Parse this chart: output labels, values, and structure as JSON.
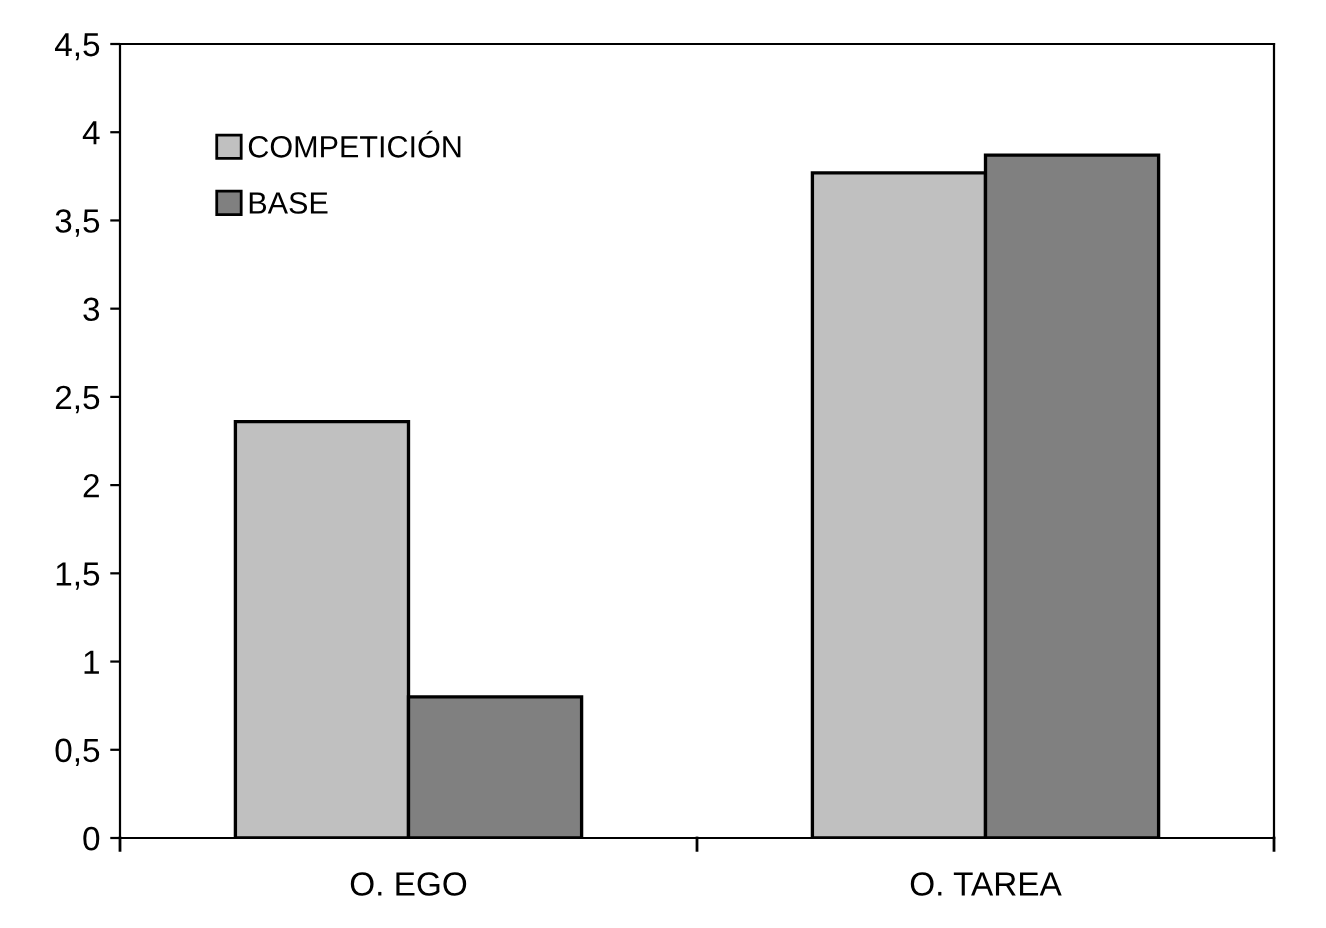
{
  "chart_data": {
    "type": "bar",
    "categories": [
      "O. EGO",
      "O. TAREA"
    ],
    "series": [
      {
        "name": "COMPETICIÓN",
        "color": "#c0c0c0",
        "values": [
          2.36,
          3.77
        ]
      },
      {
        "name": "BASE",
        "color": "#808080",
        "values": [
          0.8,
          3.87
        ]
      }
    ],
    "ylim": [
      0,
      4.5
    ],
    "yticks": [
      {
        "value": 0,
        "label": "0"
      },
      {
        "value": 0.5,
        "label": "0,5"
      },
      {
        "value": 1,
        "label": "1"
      },
      {
        "value": 1.5,
        "label": "1,5"
      },
      {
        "value": 2,
        "label": "2"
      },
      {
        "value": 2.5,
        "label": "2,5"
      },
      {
        "value": 3,
        "label": "3"
      },
      {
        "value": 3.5,
        "label": "3,5"
      },
      {
        "value": 4,
        "label": "4"
      },
      {
        "value": 4.5,
        "label": "4,5"
      }
    ],
    "grid": false,
    "legend": "top left"
  }
}
